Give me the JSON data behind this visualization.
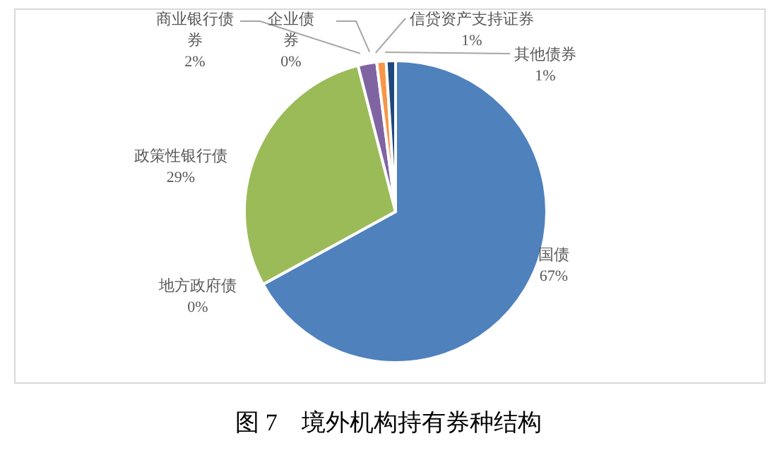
{
  "chart_data": {
    "type": "pie",
    "title": "图 7　境外机构持有券种结构",
    "categories": [
      "国债",
      "地方政府债",
      "政策性银行债",
      "商业银行债券",
      "企业债券",
      "信贷资产支持证券",
      "其他债券"
    ],
    "values": [
      67,
      0,
      29,
      2,
      0,
      1,
      1
    ],
    "value_labels": [
      "67%",
      "0%",
      "29%",
      "2%",
      "0%",
      "1%",
      "1%"
    ],
    "colors": [
      "#4f81bd",
      "#c0504d",
      "#9bbb59",
      "#8064a2",
      "#4bacc6",
      "#f79646",
      "#1f497d"
    ]
  }
}
